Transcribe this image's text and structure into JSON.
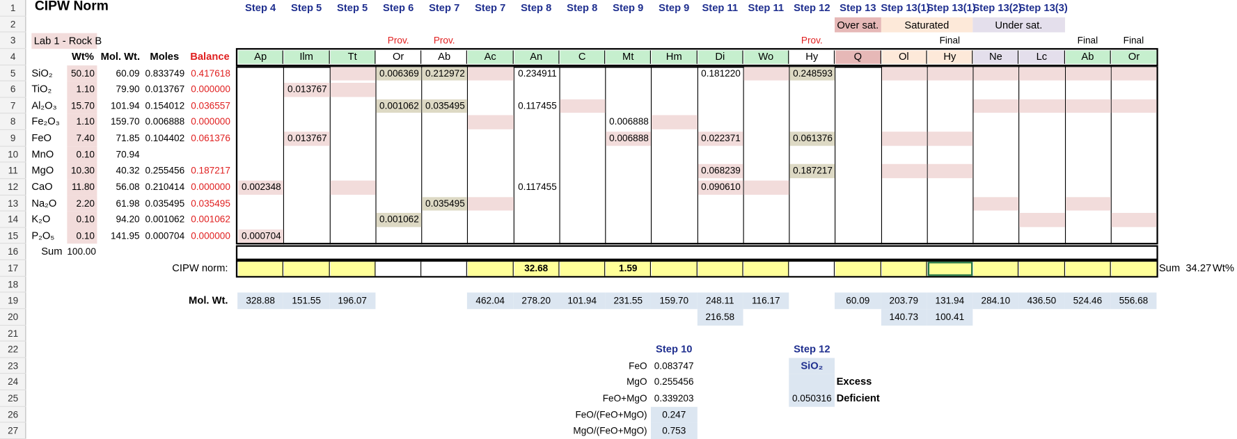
{
  "title": "CIPW Norm",
  "sample": "Lab 1 - Rock B",
  "row_numbers": [
    1,
    2,
    3,
    4,
    5,
    6,
    7,
    8,
    9,
    10,
    11,
    12,
    13,
    14,
    15,
    16,
    17,
    18,
    19,
    20,
    21,
    22,
    23,
    24,
    25,
    26,
    27
  ],
  "steps": [
    "Step 4",
    "Step 5",
    "Step 5",
    "Step 6",
    "Step 7",
    "Step 7",
    "Step 8",
    "Step 8",
    "Step 9",
    "Step 9",
    "Step 11",
    "Step 11",
    "Step 12",
    "Step 13",
    "Step 13(1)",
    "Step 13(1)",
    "Step 13(2)",
    "Step 13(3)"
  ],
  "saturation": [
    "Over sat.",
    "Saturated",
    "Under sat."
  ],
  "status": [
    null,
    null,
    null,
    "Prov.",
    "Prov.",
    null,
    null,
    null,
    null,
    null,
    null,
    null,
    "Prov.",
    null,
    null,
    "Final",
    null,
    null,
    "Final",
    "Final"
  ],
  "oxide_headers": [
    "Wt%",
    "Mol. Wt.",
    "Moles",
    "Balance"
  ],
  "minerals": [
    "Ap",
    "Ilm",
    "Tt",
    "Or",
    "Ab",
    "Ac",
    "An",
    "C",
    "Mt",
    "Hm",
    "Di",
    "Wo",
    "Hy",
    "Q",
    "Ol",
    "Hy",
    "Ne",
    "Lc",
    "Ab",
    "Or"
  ],
  "oxides": [
    {
      "name": "SiO₂",
      "wt": "50.10",
      "molwt": "60.09",
      "moles": "0.833749",
      "balance": "0.417618",
      "cells": [
        null,
        null,
        null,
        "0.006369",
        "0.212972",
        null,
        "0.234911",
        null,
        null,
        null,
        "0.181220",
        null,
        "0.248593",
        null,
        null,
        null,
        null,
        null,
        null,
        null
      ]
    },
    {
      "name": "TiO₂",
      "wt": "1.10",
      "molwt": "79.90",
      "moles": "0.013767",
      "balance": "0.000000",
      "cells": [
        null,
        "0.013767",
        null,
        null,
        null,
        null,
        null,
        null,
        null,
        null,
        null,
        null,
        null,
        null,
        null,
        null,
        null,
        null,
        null,
        null
      ]
    },
    {
      "name": "Al₂O₃",
      "wt": "15.70",
      "molwt": "101.94",
      "moles": "0.154012",
      "balance": "0.036557",
      "cells": [
        null,
        null,
        null,
        "0.001062",
        "0.035495",
        null,
        "0.117455",
        null,
        null,
        null,
        null,
        null,
        null,
        null,
        null,
        null,
        null,
        null,
        null,
        null
      ]
    },
    {
      "name": "Fe₂O₃",
      "wt": "1.10",
      "molwt": "159.70",
      "moles": "0.006888",
      "balance": "0.000000",
      "cells": [
        null,
        null,
        null,
        null,
        null,
        null,
        null,
        null,
        "0.006888",
        null,
        null,
        null,
        null,
        null,
        null,
        null,
        null,
        null,
        null,
        null
      ]
    },
    {
      "name": "FeO",
      "wt": "7.40",
      "molwt": "71.85",
      "moles": "0.104402",
      "balance": "0.061376",
      "cells": [
        null,
        "0.013767",
        null,
        null,
        null,
        null,
        null,
        null,
        "0.006888",
        null,
        "0.022371",
        null,
        "0.061376",
        null,
        null,
        null,
        null,
        null,
        null,
        null
      ]
    },
    {
      "name": "MnO",
      "wt": "0.10",
      "molwt": "70.94",
      "moles": null,
      "balance": null,
      "cells": [
        null,
        null,
        null,
        null,
        null,
        null,
        null,
        null,
        null,
        null,
        null,
        null,
        null,
        null,
        null,
        null,
        null,
        null,
        null,
        null
      ]
    },
    {
      "name": "MgO",
      "wt": "10.30",
      "molwt": "40.32",
      "moles": "0.255456",
      "balance": "0.187217",
      "cells": [
        null,
        null,
        null,
        null,
        null,
        null,
        null,
        null,
        null,
        null,
        "0.068239",
        null,
        "0.187217",
        null,
        null,
        null,
        null,
        null,
        null,
        null
      ]
    },
    {
      "name": "CaO",
      "wt": "11.80",
      "molwt": "56.08",
      "moles": "0.210414",
      "balance": "0.000000",
      "cells": [
        "0.002348",
        null,
        null,
        null,
        null,
        null,
        "0.117455",
        null,
        null,
        null,
        "0.090610",
        null,
        null,
        null,
        null,
        null,
        null,
        null,
        null,
        null
      ]
    },
    {
      "name": "Na₂O",
      "wt": "2.20",
      "molwt": "61.98",
      "moles": "0.035495",
      "balance": "0.035495",
      "cells": [
        null,
        null,
        null,
        null,
        "0.035495",
        null,
        null,
        null,
        null,
        null,
        null,
        null,
        null,
        null,
        null,
        null,
        null,
        null,
        null,
        null
      ]
    },
    {
      "name": "K₂O",
      "wt": "0.10",
      "molwt": "94.20",
      "moles": "0.001062",
      "balance": "0.001062",
      "cells": [
        null,
        null,
        null,
        "0.001062",
        null,
        null,
        null,
        null,
        null,
        null,
        null,
        null,
        null,
        null,
        null,
        null,
        null,
        null,
        null,
        null
      ]
    },
    {
      "name": "P₂O₅",
      "wt": "0.10",
      "molwt": "141.95",
      "moles": "0.000704",
      "balance": "0.000000",
      "cells": [
        "0.000704",
        null,
        null,
        null,
        null,
        null,
        null,
        null,
        null,
        null,
        null,
        null,
        null,
        null,
        null,
        null,
        null,
        null,
        null,
        null
      ]
    }
  ],
  "sum_label": "Sum",
  "sum": "100.00",
  "norm_label": "CIPW norm:",
  "norm": [
    null,
    null,
    null,
    null,
    null,
    null,
    "32.68",
    null,
    "1.59",
    null,
    null,
    null,
    null,
    null,
    null,
    null,
    null,
    null,
    null,
    null
  ],
  "norm_sum_label": "Sum",
  "norm_sum": "34.27",
  "norm_unit": "Wt%",
  "molwt_label": "Mol. Wt.",
  "molwt": [
    "328.88",
    "151.55",
    "196.07",
    null,
    null,
    "462.04",
    "278.20",
    "101.94",
    "231.55",
    "159.70",
    "248.11",
    "116.17",
    null,
    "60.09",
    "203.79",
    "131.94",
    "284.10",
    "436.50",
    "524.46",
    "556.68"
  ],
  "molwt2": [
    null,
    null,
    null,
    null,
    null,
    null,
    null,
    null,
    null,
    null,
    "216.58",
    null,
    null,
    null,
    "140.73",
    "100.41",
    null,
    null,
    null,
    null
  ],
  "step10": {
    "title": "Step 10",
    "rows": [
      {
        "label": "FeO",
        "value": "0.083747"
      },
      {
        "label": "MgO",
        "value": "0.255456"
      },
      {
        "label": "FeO+MgO",
        "value": "0.339203"
      },
      {
        "label": "FeO/(FeO+MgO)",
        "value": "0.247"
      },
      {
        "label": "MgO/(FeO+MgO)",
        "value": "0.753"
      }
    ]
  },
  "step12": {
    "title": "Step 12",
    "oxide": "SiO₂",
    "rows": [
      {
        "label": "Excess",
        "value": null
      },
      {
        "label": "Deficient",
        "value": "0.050316"
      }
    ]
  }
}
